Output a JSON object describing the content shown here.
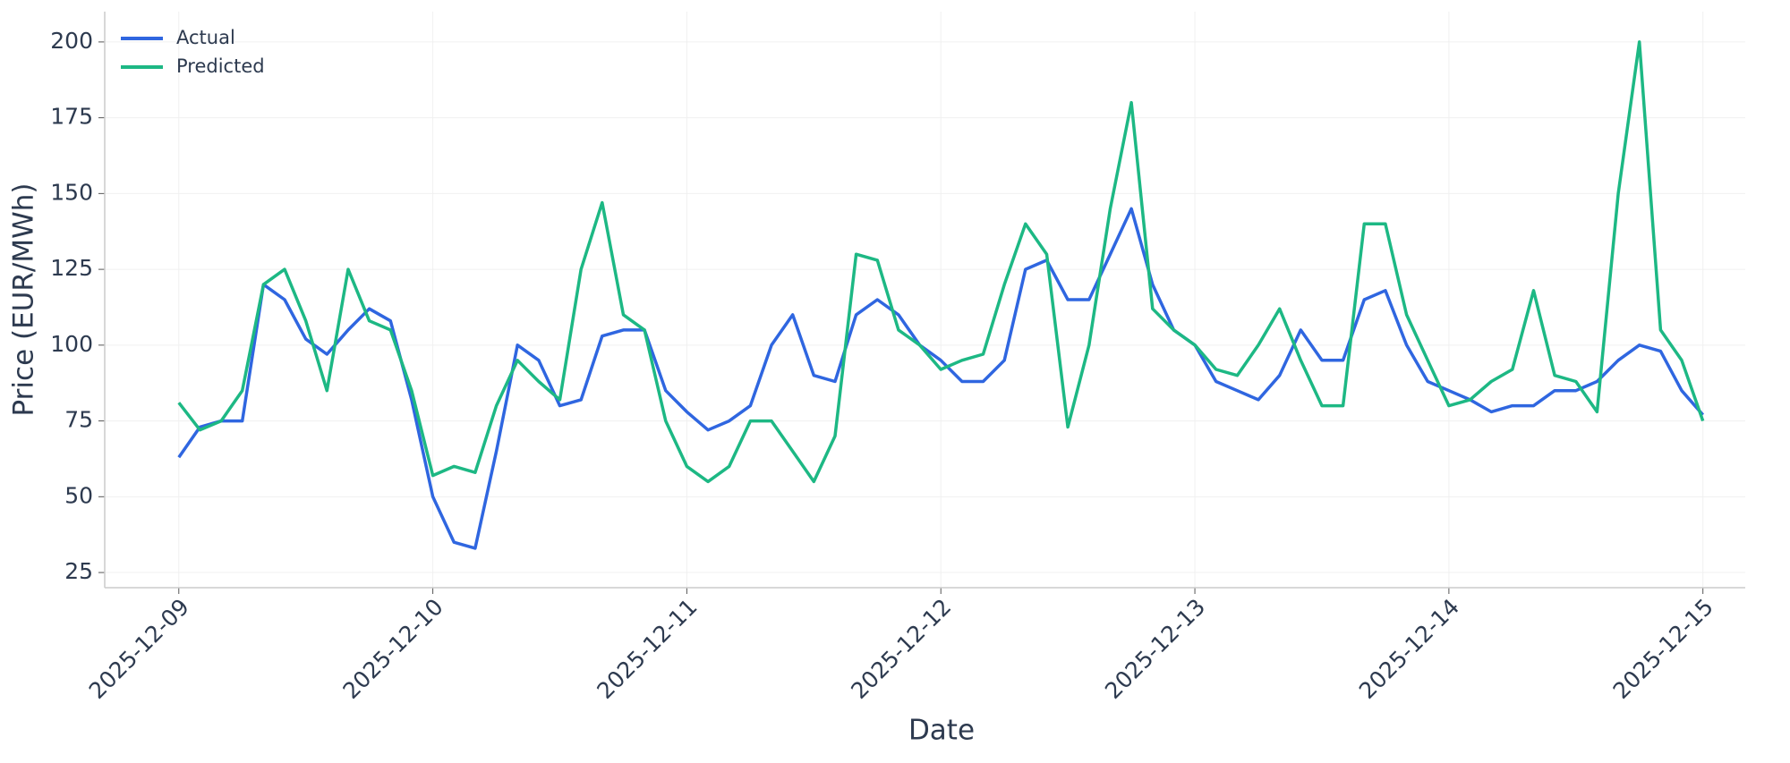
{
  "chart_data": {
    "type": "line",
    "xlabel": "Date",
    "ylabel": "Price (EUR/MWh)",
    "x": [
      "2025-12-09 00:00",
      "2025-12-09 02:00",
      "2025-12-09 04:00",
      "2025-12-09 06:00",
      "2025-12-09 08:00",
      "2025-12-09 10:00",
      "2025-12-09 12:00",
      "2025-12-09 14:00",
      "2025-12-09 16:00",
      "2025-12-09 18:00",
      "2025-12-09 20:00",
      "2025-12-09 22:00",
      "2025-12-10 00:00",
      "2025-12-10 02:00",
      "2025-12-10 04:00",
      "2025-12-10 06:00",
      "2025-12-10 08:00",
      "2025-12-10 10:00",
      "2025-12-10 12:00",
      "2025-12-10 14:00",
      "2025-12-10 16:00",
      "2025-12-10 18:00",
      "2025-12-10 20:00",
      "2025-12-10 22:00",
      "2025-12-11 00:00",
      "2025-12-11 02:00",
      "2025-12-11 04:00",
      "2025-12-11 06:00",
      "2025-12-11 08:00",
      "2025-12-11 10:00",
      "2025-12-11 12:00",
      "2025-12-11 14:00",
      "2025-12-11 16:00",
      "2025-12-11 18:00",
      "2025-12-11 20:00",
      "2025-12-11 22:00",
      "2025-12-12 00:00",
      "2025-12-12 02:00",
      "2025-12-12 04:00",
      "2025-12-12 06:00",
      "2025-12-12 08:00",
      "2025-12-12 10:00",
      "2025-12-12 12:00",
      "2025-12-12 14:00",
      "2025-12-12 16:00",
      "2025-12-12 18:00",
      "2025-12-12 20:00",
      "2025-12-12 22:00",
      "2025-12-13 00:00",
      "2025-12-13 02:00",
      "2025-12-13 04:00",
      "2025-12-13 06:00",
      "2025-12-13 08:00",
      "2025-12-13 10:00",
      "2025-12-13 12:00",
      "2025-12-13 14:00",
      "2025-12-13 16:00",
      "2025-12-13 18:00",
      "2025-12-13 20:00",
      "2025-12-13 22:00",
      "2025-12-14 00:00",
      "2025-12-14 02:00",
      "2025-12-14 04:00",
      "2025-12-14 06:00",
      "2025-12-14 08:00",
      "2025-12-14 10:00",
      "2025-12-14 12:00",
      "2025-12-14 14:00",
      "2025-12-14 16:00",
      "2025-12-14 18:00",
      "2025-12-14 20:00",
      "2025-12-14 22:00",
      "2025-12-15 00:00"
    ],
    "series": [
      {
        "name": "Actual",
        "color": "#2f66e0",
        "values": [
          63,
          73,
          75,
          75,
          120,
          115,
          102,
          97,
          105,
          112,
          108,
          82,
          50,
          35,
          33,
          65,
          100,
          95,
          80,
          82,
          103,
          105,
          105,
          85,
          78,
          72,
          75,
          80,
          100,
          110,
          90,
          88,
          110,
          115,
          110,
          100,
          95,
          88,
          88,
          95,
          125,
          128,
          115,
          115,
          130,
          145,
          120,
          105,
          100,
          88,
          85,
          82,
          90,
          105,
          95,
          95,
          115,
          118,
          100,
          88,
          85,
          82,
          78,
          80,
          80,
          85,
          85,
          88,
          95,
          100,
          98,
          85,
          77
        ]
      },
      {
        "name": "Predicted",
        "color": "#1db884",
        "values": [
          81,
          72,
          75,
          85,
          120,
          125,
          108,
          85,
          125,
          108,
          105,
          85,
          57,
          60,
          58,
          80,
          95,
          88,
          82,
          125,
          147,
          110,
          105,
          75,
          60,
          55,
          60,
          75,
          75,
          65,
          55,
          70,
          130,
          128,
          105,
          100,
          92,
          95,
          97,
          120,
          140,
          130,
          73,
          100,
          145,
          180,
          112,
          105,
          100,
          92,
          90,
          100,
          112,
          95,
          80,
          80,
          140,
          140,
          110,
          95,
          80,
          82,
          88,
          92,
          118,
          90,
          88,
          78,
          150,
          200,
          105,
          95,
          75
        ]
      }
    ],
    "xlim": [
      "2025-12-08 17:00",
      "2025-12-15 04:00"
    ],
    "xticks": [
      "2025-12-09",
      "2025-12-10",
      "2025-12-11",
      "2025-12-12",
      "2025-12-13",
      "2025-12-14",
      "2025-12-15"
    ],
    "ylim": [
      20,
      210
    ],
    "yticks": [
      25,
      50,
      75,
      100,
      125,
      150,
      175,
      200
    ],
    "grid": true,
    "legend": "upper left"
  }
}
